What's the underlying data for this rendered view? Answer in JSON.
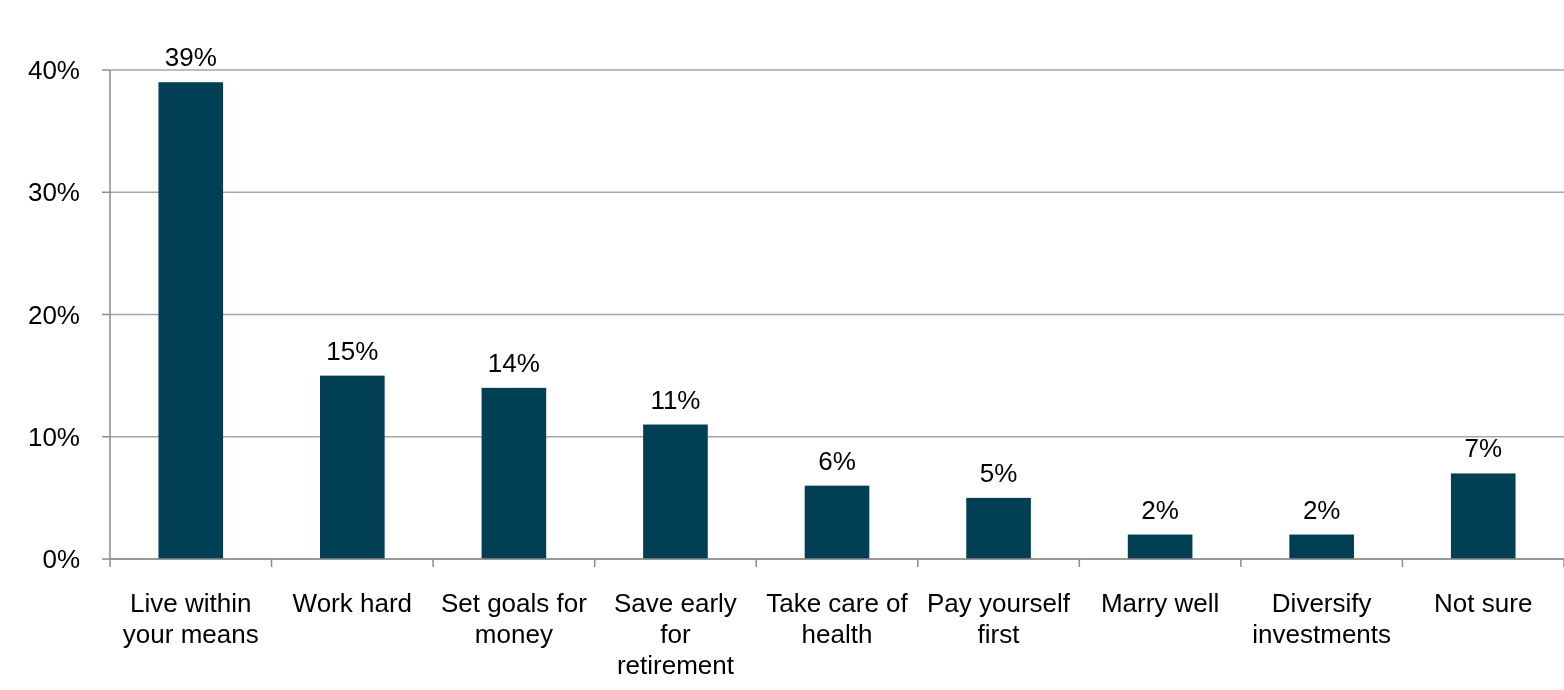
{
  "chart_data": {
    "type": "bar",
    "categories": [
      "Live within your means",
      "Work hard",
      "Set goals for money",
      "Save early for retirement",
      "Take care of health",
      "Pay yourself first",
      "Marry well",
      "Diversify investments",
      "Not sure"
    ],
    "values": [
      39,
      15,
      14,
      11,
      6,
      5,
      2,
      2,
      7
    ],
    "value_labels": [
      "39%",
      "15%",
      "14%",
      "11%",
      "6%",
      "5%",
      "2%",
      "2%",
      "7%"
    ],
    "color": "#003f54",
    "ylim": [
      0,
      40
    ],
    "yticks": [
      {
        "value": 0,
        "label": "0%"
      },
      {
        "value": 10,
        "label": "10%"
      },
      {
        "value": 20,
        "label": "20%"
      },
      {
        "value": 30,
        "label": "30%"
      },
      {
        "value": 40,
        "label": "40%"
      }
    ],
    "grid": "y"
  }
}
